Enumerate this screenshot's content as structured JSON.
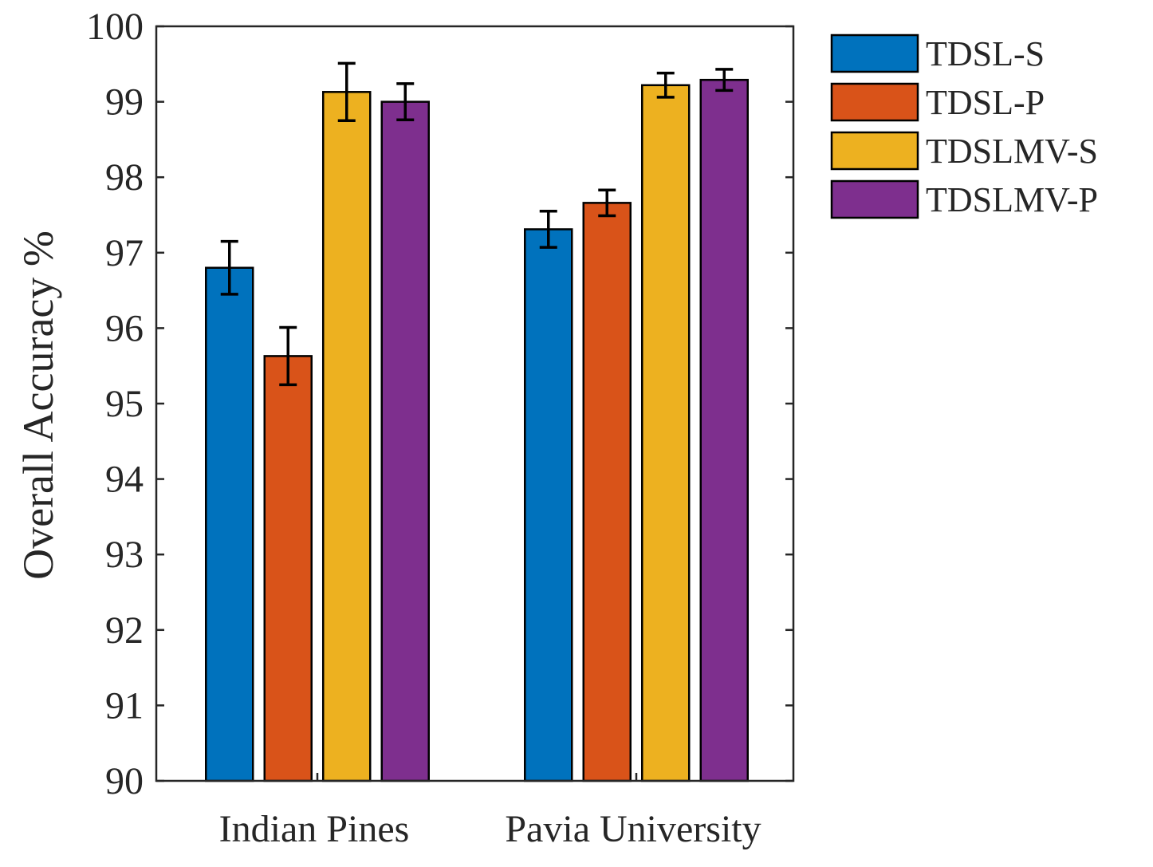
{
  "chart_data": {
    "type": "bar",
    "title": "",
    "xlabel": "",
    "ylabel": "Overall Accuracy %",
    "ylim": [
      90,
      100
    ],
    "yticks": [
      90,
      91,
      92,
      93,
      94,
      95,
      96,
      97,
      98,
      99,
      100
    ],
    "categories": [
      "Indian Pines",
      "Pavia University"
    ],
    "series": [
      {
        "name": "TDSL-S",
        "color": "#0072BD",
        "values": [
          96.8,
          97.31
        ],
        "errors": [
          0.35,
          0.24
        ]
      },
      {
        "name": "TDSL-P",
        "color": "#D95319",
        "values": [
          95.63,
          97.66
        ],
        "errors": [
          0.38,
          0.17
        ]
      },
      {
        "name": "TDSLMV-S",
        "color": "#EDB120",
        "values": [
          99.13,
          99.22
        ],
        "errors": [
          0.38,
          0.16
        ]
      },
      {
        "name": "TDSLMV-P",
        "color": "#7E2F8E",
        "values": [
          99.0,
          99.29
        ],
        "errors": [
          0.24,
          0.14
        ]
      }
    ],
    "legend": "outside-top-right",
    "grid": false
  }
}
